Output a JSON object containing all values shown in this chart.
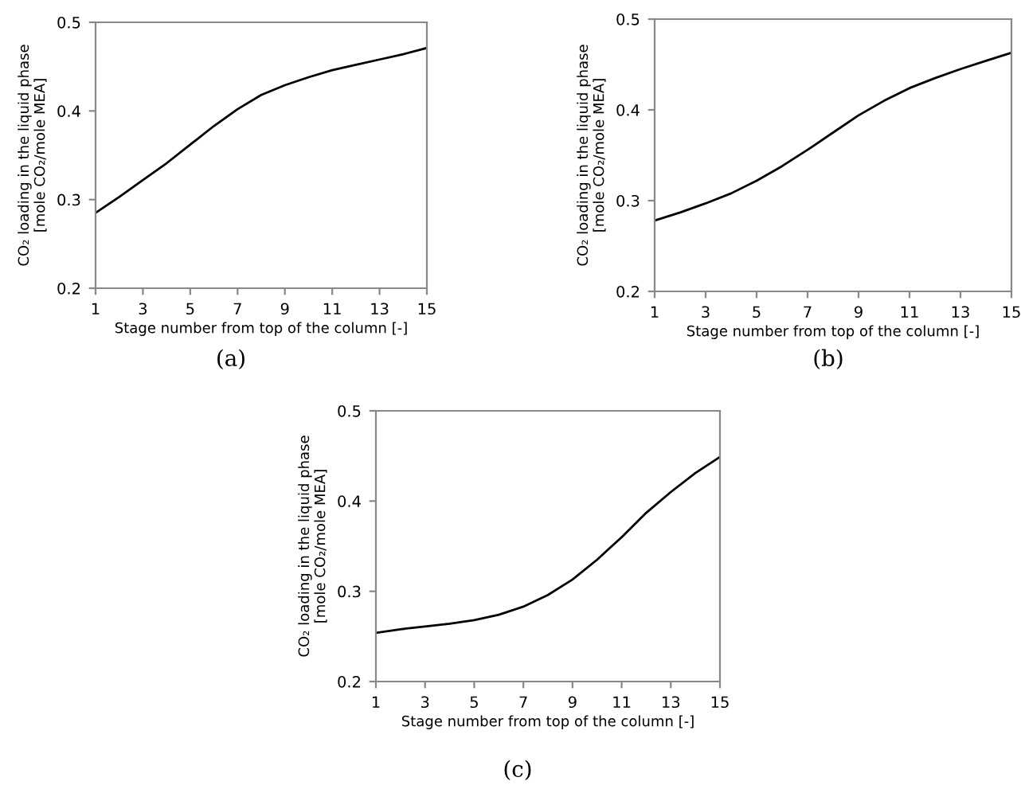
{
  "chart_data": [
    {
      "type": "line",
      "x": [
        1,
        2,
        3,
        4,
        5,
        6,
        7,
        8,
        9,
        10,
        11,
        12,
        13,
        14,
        15
      ],
      "series": [
        {
          "color": "#000000",
          "values": [
            0.285,
            0.303,
            0.322,
            0.341,
            0.362,
            0.383,
            0.402,
            0.418,
            0.429,
            0.438,
            0.446,
            0.452,
            0.458,
            0.464,
            0.471
          ]
        }
      ],
      "xlabel": "Stage number from top of the column [-]",
      "ylabel": "CO₂ loading in the liquid phase\n[mole CO₂/mole MEA]",
      "xlim": [
        1,
        15
      ],
      "xticks": [
        1,
        3,
        5,
        7,
        9,
        11,
        13,
        15
      ],
      "ylim": [
        0.2,
        0.5
      ],
      "yticks": [
        0.2,
        0.3,
        0.4,
        0.5
      ],
      "marker": "none",
      "line_style": "solid",
      "annotations": [
        "(a)"
      ]
    },
    {
      "type": "line",
      "x": [
        1,
        2,
        3,
        4,
        5,
        6,
        7,
        8,
        9,
        10,
        11,
        12,
        13,
        14,
        15
      ],
      "series": [
        {
          "color": "#000000",
          "values": [
            0.278,
            0.287,
            0.297,
            0.308,
            0.322,
            0.338,
            0.356,
            0.375,
            0.394,
            0.41,
            0.424,
            0.435,
            0.445,
            0.454,
            0.463
          ]
        }
      ],
      "xlabel": "Stage number from top of the column [-]",
      "ylabel": "CO₂ loading in the liquid phase\n[mole CO₂/mole MEA]",
      "xlim": [
        1,
        15
      ],
      "xticks": [
        1,
        3,
        5,
        7,
        9,
        11,
        13,
        15
      ],
      "ylim": [
        0.2,
        0.5
      ],
      "yticks": [
        0.2,
        0.3,
        0.4,
        0.5
      ],
      "marker": "none",
      "line_style": "solid",
      "annotations": [
        "(b)"
      ]
    },
    {
      "type": "line",
      "x": [
        1,
        2,
        3,
        4,
        5,
        6,
        7,
        8,
        9,
        10,
        11,
        12,
        13,
        14,
        15
      ],
      "series": [
        {
          "color": "#000000",
          "values": [
            0.254,
            0.258,
            0.261,
            0.264,
            0.268,
            0.274,
            0.283,
            0.296,
            0.313,
            0.335,
            0.36,
            0.387,
            0.41,
            0.431,
            0.449
          ]
        }
      ],
      "xlabel": "Stage number from top of the column [-]",
      "ylabel": "CO₂ loading in the liquid phase\n[mole CO₂/mole MEA]",
      "xlim": [
        1,
        15
      ],
      "xticks": [
        1,
        3,
        5,
        7,
        9,
        11,
        13,
        15
      ],
      "ylim": [
        0.2,
        0.5
      ],
      "yticks": [
        0.2,
        0.3,
        0.4,
        0.5
      ],
      "marker": "none",
      "line_style": "solid",
      "annotations": [
        "(c)"
      ]
    }
  ]
}
